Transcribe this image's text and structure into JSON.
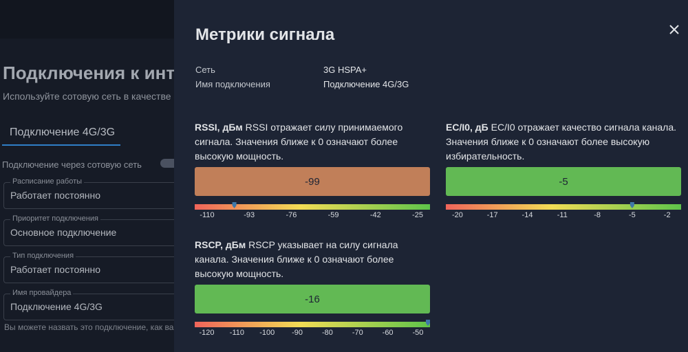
{
  "background": {
    "title": "Подключения к инт",
    "subtitle": "Используйте сотовую сеть в качестве о",
    "tab": "Подключение 4G/3G",
    "toggle_label": "Подключение через сотовую сеть",
    "fields": [
      {
        "label": "Расписание работы",
        "value": "Работает постоянно"
      },
      {
        "label": "Приоритет подключения",
        "value": "Основное подключение"
      },
      {
        "label": "Тип подключения",
        "value": "Работает постоянно"
      },
      {
        "label": "Имя провайдера",
        "value": "Подключение 4G/3G"
      }
    ],
    "hint": "Вы можете назвать это подключение, как ваш"
  },
  "panel": {
    "title": "Метрики сигнала",
    "info": [
      {
        "label": "Сеть",
        "value": "3G HSPA+"
      },
      {
        "label": "Имя подключения",
        "value": "Подключение 4G/3G"
      }
    ],
    "metrics": [
      {
        "name": "RSSI, дБм",
        "description": "RSSI отражает силу принимаемого сигнала. Значения ближе к 0 означают более высокую мощность.",
        "value": -99,
        "color": "#c17f59",
        "lim": [
          -115,
          -20
        ],
        "ticks": [
          -110,
          -93,
          -76,
          -59,
          -42,
          -25
        ]
      },
      {
        "name": "EC/I0, дБ",
        "description": "EC/I0 отражает качество сигнала канала. Значения ближе к 0 означают более высокую избирательность.",
        "value": -5,
        "color": "#62b954",
        "lim": [
          -21,
          -0.8
        ],
        "ticks": [
          -20,
          -17,
          -14,
          -11,
          -8,
          -5,
          -2
        ]
      },
      {
        "name": "RSCP, дБм",
        "description": "RSCP указывает на силу сигнала канала. Значения ближе к 0 означают более высокую мощность.",
        "value": -16,
        "color": "#62b954",
        "lim": [
          -124,
          -46
        ],
        "ticks": [
          -120,
          -110,
          -100,
          -90,
          -80,
          -70,
          -60,
          -50
        ]
      }
    ]
  }
}
